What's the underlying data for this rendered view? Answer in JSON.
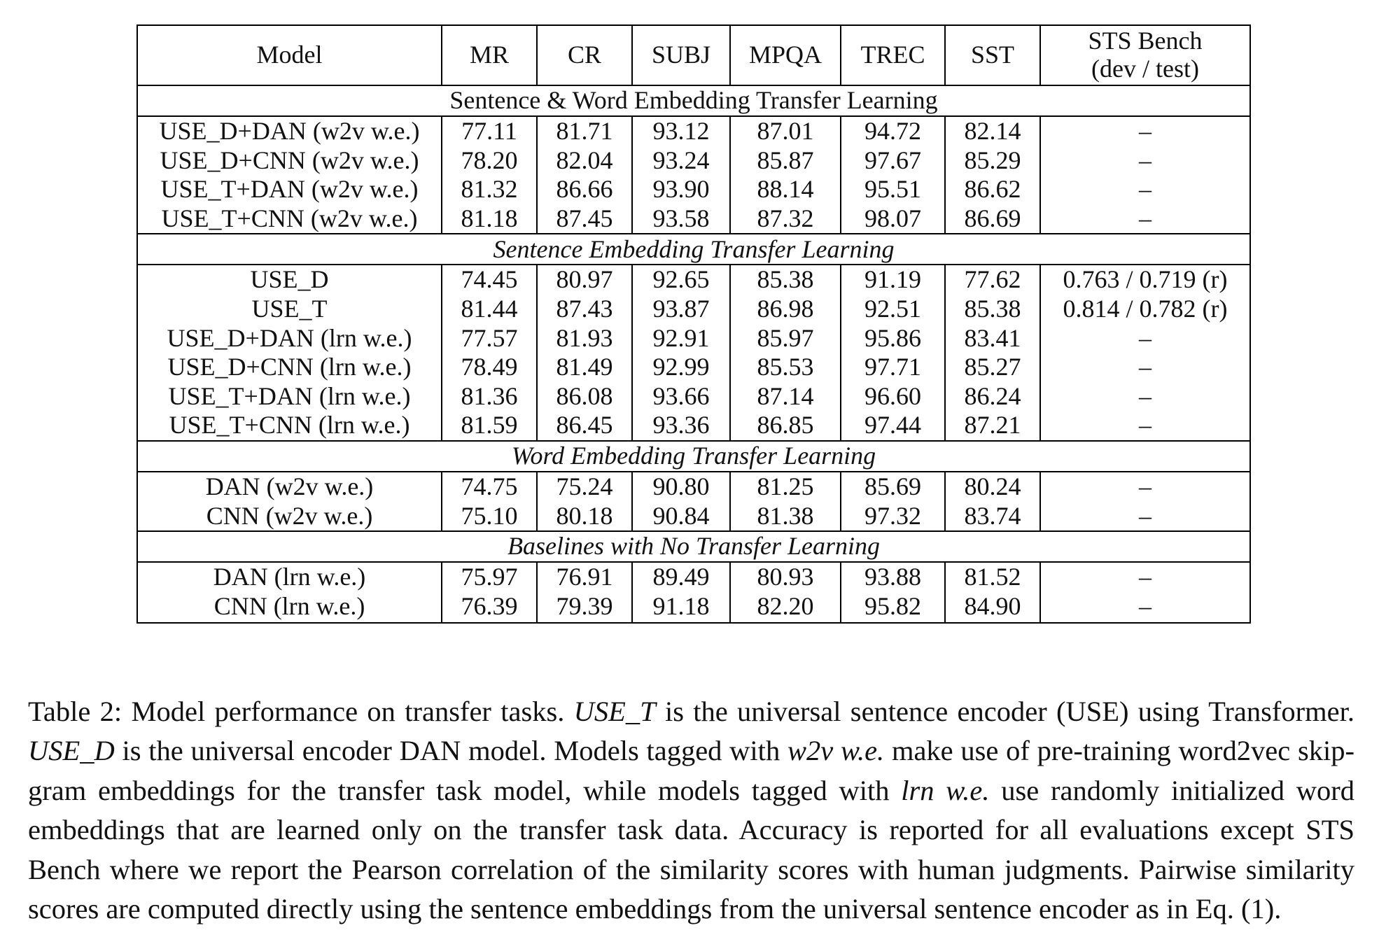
{
  "table": {
    "headers": [
      "Model",
      "MR",
      "CR",
      "SUBJ",
      "MPQA",
      "TREC",
      "SST",
      "STS Bench\n(dev / test)"
    ],
    "header_sts_line1": "STS Bench",
    "header_sts_line2": "(dev / test)",
    "sections": [
      {
        "title": "Sentence & Word Embedding Transfer Learning",
        "italic": false,
        "rows": [
          [
            "USE_D+DAN (w2v w.e.)",
            "77.11",
            "81.71",
            "93.12",
            "87.01",
            "94.72",
            "82.14",
            "–"
          ],
          [
            "USE_D+CNN (w2v w.e.)",
            "78.20",
            "82.04",
            "93.24",
            "85.87",
            "97.67",
            "85.29",
            "–"
          ],
          [
            "USE_T+DAN (w2v w.e.)",
            "81.32",
            "86.66",
            "93.90",
            "88.14",
            "95.51",
            "86.62",
            "–"
          ],
          [
            "USE_T+CNN (w2v w.e.)",
            "81.18",
            "87.45",
            "93.58",
            "87.32",
            "98.07",
            "86.69",
            "–"
          ]
        ]
      },
      {
        "title": "Sentence Embedding Transfer Learning",
        "italic": true,
        "rows": [
          [
            "USE_D",
            "74.45",
            "80.97",
            "92.65",
            "85.38",
            "91.19",
            "77.62",
            "0.763 / 0.719 (r)"
          ],
          [
            "USE_T",
            "81.44",
            "87.43",
            "93.87",
            "86.98",
            "92.51",
            "85.38",
            "0.814 / 0.782 (r)"
          ],
          [
            "USE_D+DAN (lrn w.e.)",
            "77.57",
            "81.93",
            "92.91",
            "85.97",
            "95.86",
            "83.41",
            "–"
          ],
          [
            "USE_D+CNN (lrn w.e.)",
            "78.49",
            "81.49",
            "92.99",
            "85.53",
            "97.71",
            "85.27",
            "–"
          ],
          [
            "USE_T+DAN (lrn w.e.)",
            "81.36",
            "86.08",
            "93.66",
            "87.14",
            "96.60",
            "86.24",
            "–"
          ],
          [
            "USE_T+CNN (lrn w.e.)",
            "81.59",
            "86.45",
            "93.36",
            "86.85",
            "97.44",
            "87.21",
            "–"
          ]
        ]
      },
      {
        "title": "Word Embedding Transfer Learning",
        "italic": true,
        "rows": [
          [
            "DAN (w2v w.e.)",
            "74.75",
            "75.24",
            "90.80",
            "81.25",
            "85.69",
            "80.24",
            "–"
          ],
          [
            "CNN (w2v w.e.)",
            "75.10",
            "80.18",
            "90.84",
            "81.38",
            "97.32",
            "83.74",
            "–"
          ]
        ]
      },
      {
        "title": "Baselines with No Transfer Learning",
        "italic": true,
        "rows": [
          [
            "DAN (lrn w.e.)",
            "75.97",
            "76.91",
            "89.49",
            "80.93",
            "93.88",
            "81.52",
            "–"
          ],
          [
            "CNN (lrn w.e.)",
            "76.39",
            "79.39",
            "91.18",
            "82.20",
            "95.82",
            "84.90",
            "–"
          ]
        ]
      }
    ]
  },
  "caption": {
    "s1": "Table 2: Model performance on transfer tasks. ",
    "i1": "USE_T",
    "s2": " is the universal sentence encoder (USE) using Transformer. ",
    "i2": "USE_D",
    "s3": " is the universal encoder DAN model. Models tagged with ",
    "i3": "w2v w.e.",
    "s4": " make use of pre-training word2vec skip-gram embeddings for the transfer task model, while models tagged with ",
    "i4": "lrn w.e.",
    "s5": " use randomly initialized word embeddings that are learned only on the transfer task data. Accuracy is reported for all evaluations except STS Bench where we report the Pearson correlation of the similarity scores with human judgments. Pairwise similarity scores are computed directly using the sentence embeddings from the universal sentence encoder as in Eq. (1)."
  }
}
